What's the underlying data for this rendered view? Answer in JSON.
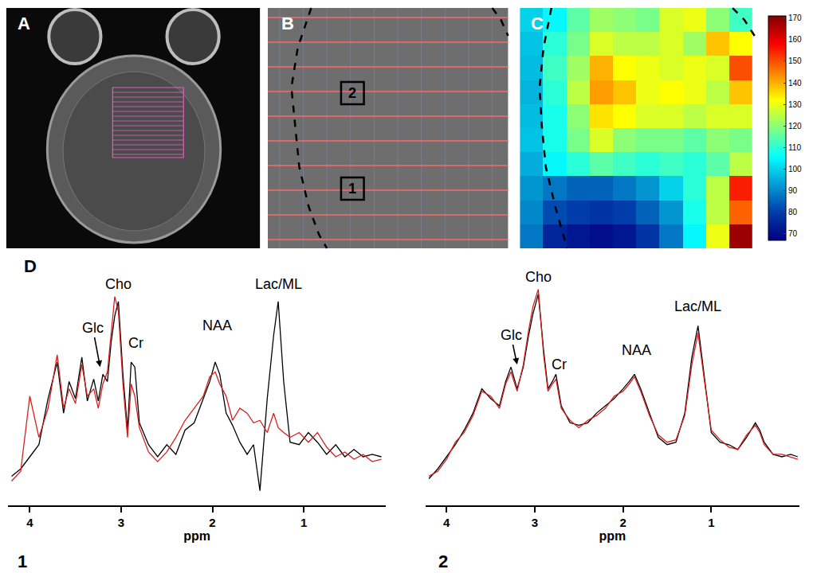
{
  "panel_letters": [
    "A",
    "B",
    "C",
    "D"
  ],
  "panel_b": {
    "voxel_labels": [
      "1",
      "2"
    ]
  },
  "chart_data": [
    {
      "type": "heatmap",
      "cells": [
        [
          100,
          105,
          115,
          122,
          120,
          118,
          128,
          130,
          120,
          112
        ],
        [
          98,
          110,
          118,
          128,
          125,
          125,
          128,
          122,
          138,
          132
        ],
        [
          97,
          112,
          122,
          140,
          132,
          130,
          128,
          130,
          128,
          150
        ],
        [
          96,
          110,
          125,
          142,
          138,
          130,
          132,
          130,
          125,
          138
        ],
        [
          97,
          108,
          120,
          135,
          132,
          128,
          128,
          125,
          128,
          128
        ],
        [
          98,
          108,
          118,
          128,
          120,
          118,
          118,
          115,
          120,
          118
        ],
        [
          95,
          105,
          110,
          115,
          112,
          110,
          112,
          110,
          115,
          125
        ],
        [
          92,
          88,
          85,
          85,
          88,
          92,
          100,
          110,
          125,
          155
        ],
        [
          90,
          82,
          80,
          78,
          80,
          85,
          92,
          108,
          125,
          148
        ],
        [
          88,
          75,
          72,
          70,
          72,
          78,
          88,
          105,
          130,
          168
        ]
      ],
      "zlim": [
        67,
        171
      ],
      "zticks": [
        70,
        80,
        90,
        100,
        110,
        120,
        130,
        140,
        150,
        160,
        170
      ],
      "color": "Jet",
      "tick_labels": false
    },
    {
      "type": "line",
      "label": "1",
      "xlabel": "ppm",
      "x": [
        4.2,
        4.1,
        4.0,
        3.9,
        3.8,
        3.7,
        3.63,
        3.57,
        3.5,
        3.43,
        3.37,
        3.3,
        3.25,
        3.2,
        3.15,
        3.11,
        3.07,
        3.03,
        2.98,
        2.93,
        2.89,
        2.85,
        2.8,
        2.7,
        2.6,
        2.5,
        2.4,
        2.3,
        2.2,
        2.1,
        2.03,
        1.97,
        1.92,
        1.85,
        1.78,
        1.7,
        1.62,
        1.55,
        1.48,
        1.4,
        1.33,
        1.28,
        1.22,
        1.15,
        1.05,
        0.95,
        0.85,
        0.75,
        0.65,
        0.55,
        0.45,
        0.35,
        0.25,
        0.15
      ],
      "series": [
        {
          "color": "#000000",
          "values": [
            12,
            15,
            20,
            25,
            44,
            59,
            38,
            51,
            44,
            61,
            43,
            52,
            43,
            54,
            51,
            67,
            78,
            84,
            54,
            31,
            59,
            57,
            34,
            25,
            20,
            25,
            21,
            31,
            34,
            44,
            51,
            59,
            54,
            38,
            33,
            26,
            21,
            25,
            6,
            44,
            70,
            84,
            51,
            26,
            25,
            30,
            26,
            21,
            25,
            20,
            23,
            20,
            21,
            20
          ]
        },
        {
          "color": "#d62020",
          "values": [
            10,
            14,
            45,
            28,
            40,
            62,
            40,
            48,
            42,
            58,
            45,
            48,
            40,
            50,
            55,
            70,
            86,
            80,
            50,
            28,
            50,
            45,
            32,
            22,
            18,
            22,
            28,
            35,
            40,
            45,
            53,
            55,
            50,
            45,
            35,
            40,
            38,
            34,
            35,
            30,
            38,
            32,
            30,
            28,
            30,
            26,
            30,
            24,
            20,
            22,
            19,
            21,
            18,
            19
          ]
        }
      ],
      "xlim": [
        4.24,
        0.1
      ],
      "xticks": [
        1,
        2,
        3,
        4
      ],
      "ylim": [
        0,
        100
      ],
      "tick_labels": "x",
      "annotations": [
        {
          "text": "Glc",
          "x": 3.31,
          "y": 73,
          "arrow_to": [
            3.23,
            57
          ]
        },
        {
          "text": "Cho",
          "x": 3.03,
          "y": 91
        },
        {
          "text": "Cr",
          "x": 2.84,
          "y": 67
        },
        {
          "text": "NAA",
          "x": 1.95,
          "y": 74
        },
        {
          "text": "Lac/ML",
          "x": 1.28,
          "y": 91
        }
      ]
    },
    {
      "type": "line",
      "label": "2",
      "xlabel": "ppm",
      "x": [
        4.2,
        4.1,
        4.0,
        3.9,
        3.8,
        3.7,
        3.6,
        3.5,
        3.4,
        3.33,
        3.27,
        3.2,
        3.13,
        3.07,
        3.02,
        2.96,
        2.9,
        2.85,
        2.8,
        2.76,
        2.7,
        2.6,
        2.5,
        2.4,
        2.3,
        2.2,
        2.1,
        2.0,
        1.93,
        1.87,
        1.8,
        1.7,
        1.6,
        1.5,
        1.4,
        1.3,
        1.22,
        1.15,
        1.08,
        1.0,
        0.9,
        0.8,
        0.7,
        0.6,
        0.5,
        0.45,
        0.4,
        0.3,
        0.2,
        0.1,
        0.02
      ],
      "series": [
        {
          "color": "#000000",
          "values": [
            11,
            15,
            20,
            25,
            31,
            38,
            48,
            44,
            41,
            51,
            57,
            48,
            57,
            70,
            79,
            87,
            64,
            48,
            51,
            54,
            41,
            34,
            33,
            34,
            38,
            41,
            44,
            48,
            51,
            54,
            48,
            38,
            28,
            25,
            26,
            38,
            61,
            74,
            54,
            30,
            26,
            25,
            23,
            28,
            34,
            31,
            26,
            21,
            20,
            21,
            20
          ]
        },
        {
          "color": "#d62020",
          "values": [
            12,
            14,
            19,
            26,
            30,
            37,
            47,
            45,
            40,
            50,
            55,
            47,
            58,
            72,
            82,
            89,
            62,
            47,
            50,
            52,
            40,
            35,
            32,
            35,
            37,
            40,
            45,
            47,
            50,
            53,
            47,
            37,
            29,
            26,
            27,
            37,
            58,
            71,
            52,
            31,
            27,
            24,
            23,
            29,
            33,
            30,
            25,
            21,
            21,
            20,
            19
          ]
        }
      ],
      "xlim": [
        4.24,
        0
      ],
      "xticks": [
        1,
        2,
        3,
        4
      ],
      "ylim": [
        0,
        100
      ],
      "tick_labels": "x",
      "annotations": [
        {
          "text": "Glc",
          "x": 3.27,
          "y": 70,
          "arrow_to": [
            3.2,
            58
          ]
        },
        {
          "text": "Cho",
          "x": 2.96,
          "y": 94
        },
        {
          "text": "Cr",
          "x": 2.72,
          "y": 58
        },
        {
          "text": "NAA",
          "x": 1.85,
          "y": 64
        },
        {
          "text": "Lac/ML",
          "x": 1.15,
          "y": 82
        }
      ]
    }
  ]
}
